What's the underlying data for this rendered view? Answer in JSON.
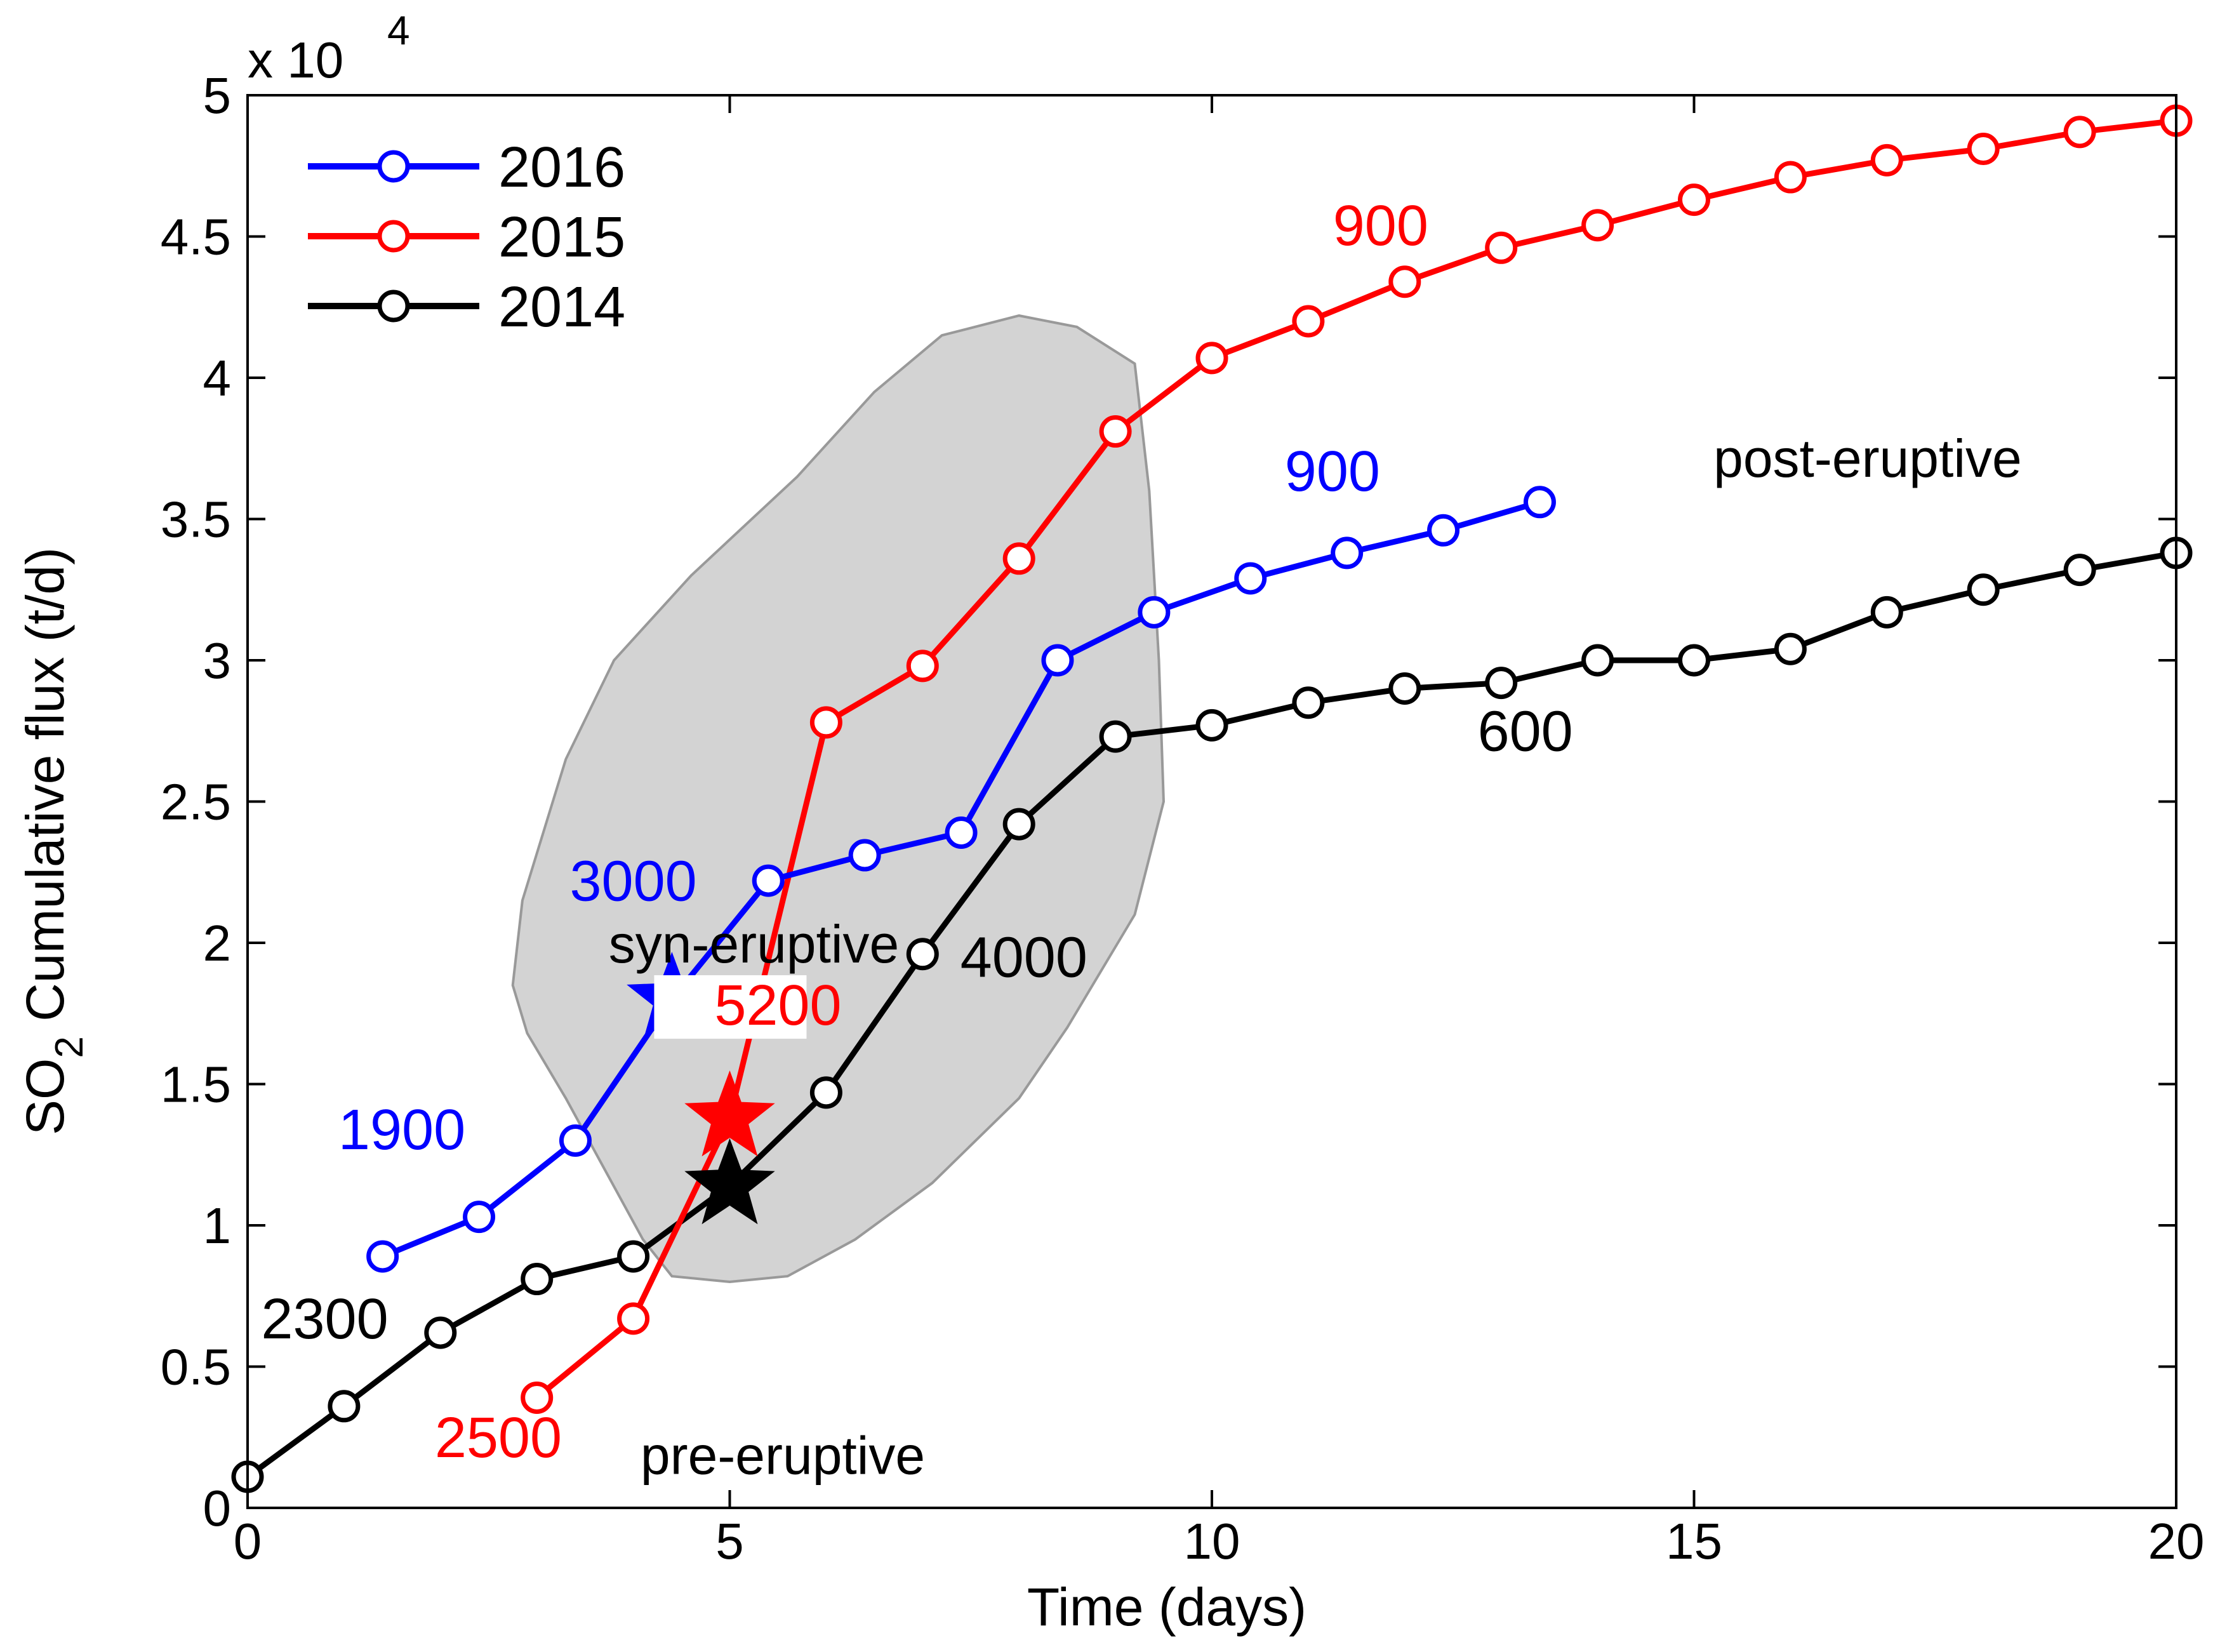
{
  "chart_data": {
    "type": "line",
    "xlabel": "Time (days)",
    "ylabel_main": "SO",
    "ylabel_sub": "2",
    "ylabel_rest": " Cumulative flux (t/d)",
    "exponent_prefix": "x 10",
    "exponent_power": "4",
    "xlim": [
      0,
      20
    ],
    "ylim": [
      0,
      5
    ],
    "x_ticks": [
      0,
      5,
      10,
      15,
      20
    ],
    "y_ticks": [
      0,
      0.5,
      1,
      1.5,
      2,
      2.5,
      3,
      3.5,
      4,
      4.5,
      5
    ],
    "x_tick_labels": [
      "0",
      "5",
      "10",
      "15",
      "20"
    ],
    "y_tick_labels": [
      "0",
      "0.5",
      "1",
      "1.5",
      "2",
      "2.5",
      "3",
      "3.5",
      "4",
      "4.5",
      "5"
    ],
    "legend_position": "top-left",
    "series": [
      {
        "name": "2016",
        "color": "#0000ff",
        "x": [
          1.4,
          2.4,
          3.4,
          5.4,
          6.4,
          7.4,
          8.4,
          9.4,
          10.4,
          11.4,
          12.4,
          13.4
        ],
        "y": [
          0.89,
          1.03,
          1.3,
          2.22,
          2.31,
          2.39,
          3.0,
          3.17,
          3.29,
          3.38,
          3.46,
          3.56
        ],
        "event": {
          "x": 4.4,
          "y": 1.8
        }
      },
      {
        "name": "2015",
        "color": "#ff0000",
        "x": [
          3,
          4,
          6,
          7,
          8,
          9,
          10,
          11,
          12,
          13,
          14,
          15,
          16,
          17,
          18,
          19,
          20
        ],
        "y": [
          0.39,
          0.67,
          2.78,
          2.98,
          3.36,
          3.81,
          4.07,
          4.2,
          4.34,
          4.46,
          4.54,
          4.63,
          4.71,
          4.77,
          4.81,
          4.87,
          4.91
        ],
        "event": {
          "x": 5.0,
          "y": 1.38
        }
      },
      {
        "name": "2014",
        "color": "#000000",
        "x": [
          0,
          1,
          2,
          3,
          4,
          6,
          7,
          8,
          9,
          10,
          11,
          12,
          13,
          14,
          15,
          16,
          17,
          18,
          19,
          20
        ],
        "y": [
          0.11,
          0.36,
          0.62,
          0.81,
          0.89,
          1.47,
          1.96,
          2.42,
          2.73,
          2.77,
          2.85,
          2.9,
          2.92,
          3.0,
          3.0,
          3.04,
          3.17,
          3.25,
          3.32,
          3.38
        ],
        "event": {
          "x": 5.0,
          "y": 1.14
        }
      }
    ],
    "annotations": [
      {
        "text": "1900",
        "color": "#0000ff",
        "x": 1.6,
        "y": 1.27
      },
      {
        "text": "3000",
        "color": "#0000ff",
        "x": 4.0,
        "y": 2.15
      },
      {
        "text": "900",
        "color": "#0000ff",
        "x": 11.25,
        "y": 3.6
      },
      {
        "text": "900",
        "color": "#ff0000",
        "x": 11.75,
        "y": 4.47
      },
      {
        "text": "5200",
        "color": "#ff0000",
        "x": 5.5,
        "y": 1.71,
        "boxed": true
      },
      {
        "text": "2500",
        "color": "#ff0000",
        "x": 2.6,
        "y": 0.18
      },
      {
        "text": "2300",
        "color": "#000000",
        "x": 0.8,
        "y": 0.6
      },
      {
        "text": "4000",
        "color": "#000000",
        "x": 8.05,
        "y": 1.88
      },
      {
        "text": "600",
        "color": "#000000",
        "x": 13.25,
        "y": 2.68
      }
    ],
    "regions": [
      {
        "text": "syn-eruptive",
        "x": 5.25,
        "y": 1.93
      },
      {
        "text": "pre-eruptive",
        "x": 5.55,
        "y": 0.12
      },
      {
        "text": "post-eruptive",
        "x": 16.8,
        "y": 3.65
      }
    ],
    "shaded_region_color": "#d3d3d3"
  }
}
